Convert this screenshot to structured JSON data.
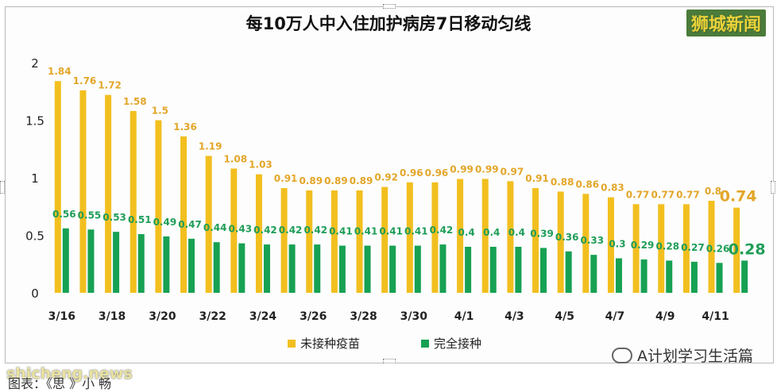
{
  "header": {
    "title": "每10万人中入住加护病房7日移动匀线",
    "brand": "狮城新闻"
  },
  "footer": {
    "site": "shicheng.news",
    "caption": "图表：《思 》小 畅",
    "account": "A计划学习生活篇"
  },
  "colors": {
    "unvaccinated": "#f2bf1f",
    "vaccinated": "#17a153",
    "unvaccinated_label": "#e3a629",
    "vaccinated_label": "#1f9d58"
  },
  "chart_data": {
    "type": "bar",
    "title": "每10万人中入住加护病房7日移动匀线",
    "categories": [
      "3/16",
      "3/17",
      "3/18",
      "3/19",
      "3/20",
      "3/21",
      "3/22",
      "3/23",
      "3/24",
      "3/25",
      "3/26",
      "3/27",
      "3/28",
      "3/29",
      "3/30",
      "3/31",
      "4/1",
      "4/2",
      "4/3",
      "4/4",
      "4/5",
      "4/6",
      "4/7",
      "4/8",
      "4/9",
      "4/10",
      "4/11",
      "4/12"
    ],
    "tick_labels": [
      "3/16",
      "3/18",
      "3/20",
      "3/22",
      "3/24",
      "3/26",
      "3/28",
      "3/30",
      "4/1",
      "4/3",
      "4/5",
      "4/7",
      "4/9",
      "4/11"
    ],
    "series": [
      {
        "name": "未接种疫苗",
        "values": [
          1.84,
          1.76,
          1.72,
          1.58,
          1.5,
          1.36,
          1.19,
          1.08,
          1.03,
          0.91,
          0.89,
          0.89,
          0.89,
          0.92,
          0.96,
          0.96,
          0.99,
          0.99,
          0.97,
          0.91,
          0.88,
          0.86,
          0.83,
          0.77,
          0.77,
          0.77,
          0.8,
          0.74
        ]
      },
      {
        "name": "完全接种",
        "values": [
          0.56,
          0.55,
          0.53,
          0.51,
          0.49,
          0.47,
          0.44,
          0.43,
          0.42,
          0.42,
          0.42,
          0.41,
          0.41,
          0.41,
          0.41,
          0.42,
          0.4,
          0.4,
          0.4,
          0.39,
          0.36,
          0.33,
          0.3,
          0.29,
          0.28,
          0.27,
          0.26,
          0.28
        ]
      }
    ],
    "yticks": [
      0,
      0.5,
      1,
      1.5,
      2
    ],
    "ylim": [
      0,
      2
    ],
    "grid": false,
    "legend": "bottom"
  }
}
